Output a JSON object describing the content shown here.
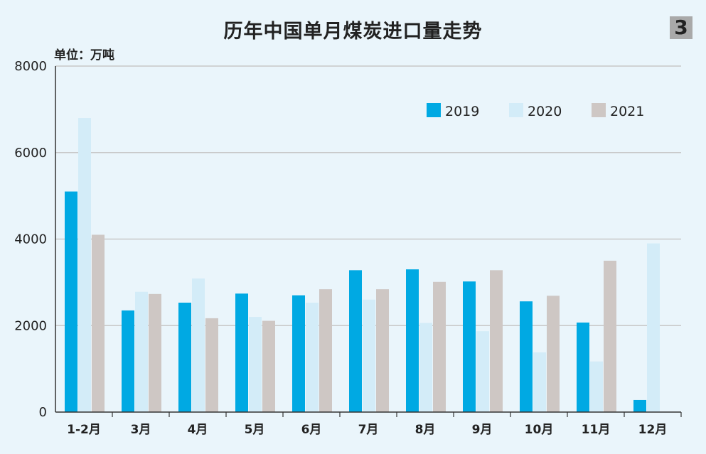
{
  "header": {
    "title": "历年中国单月煤炭进口量走势",
    "badge": "3",
    "unit": "单位：万吨"
  },
  "colors": {
    "2019": "#00a9e3",
    "2020": "#d3ecf8",
    "2021": "#cec7c4",
    "background": "#eaf5fb",
    "grid": "#c8c8c8"
  },
  "chart_data": {
    "type": "bar",
    "title": "历年中国单月煤炭进口量走势",
    "ylabel": "单位：万吨",
    "xlabel": "",
    "ylim": [
      0,
      8000
    ],
    "yticks": [
      0,
      2000,
      4000,
      6000,
      8000
    ],
    "grid": true,
    "legend_position": "top-right",
    "categories": [
      "1-2月",
      "3月",
      "4月",
      "5月",
      "6月",
      "7月",
      "8月",
      "9月",
      "10月",
      "11月",
      "12月"
    ],
    "series": [
      {
        "name": "2019",
        "values": [
          5100,
          2350,
          2530,
          2740,
          2700,
          3280,
          3300,
          3020,
          2560,
          2070,
          280
        ]
      },
      {
        "name": "2020",
        "values": [
          6800,
          2780,
          3090,
          2200,
          2530,
          2600,
          2060,
          1870,
          1380,
          1170,
          3900
        ]
      },
      {
        "name": "2021",
        "values": [
          4100,
          2730,
          2170,
          2110,
          2840,
          2840,
          3010,
          3280,
          2690,
          3500,
          null
        ]
      }
    ]
  }
}
